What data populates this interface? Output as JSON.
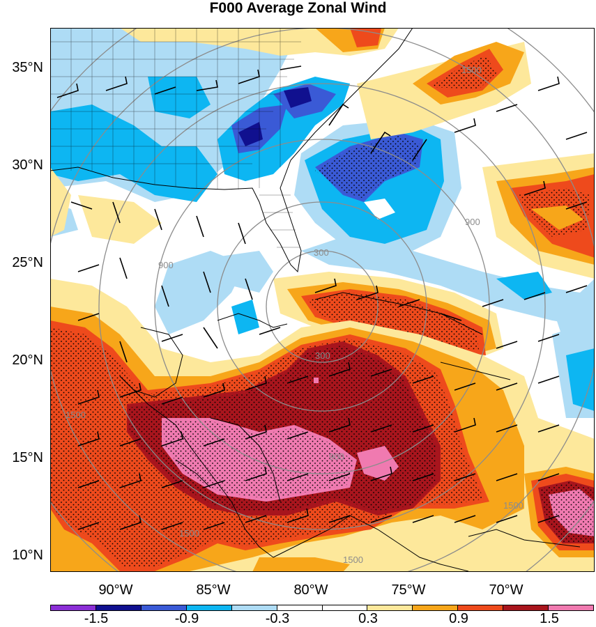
{
  "title": "F000 Average Zonal Wind",
  "latitude_labels": [
    "35°N",
    "30°N",
    "25°N",
    "20°N",
    "15°N",
    "10°N"
  ],
  "longitude_labels": [
    "90°W",
    "85°W",
    "80°W",
    "75°W",
    "70°W"
  ],
  "colorbar": {
    "colors": [
      "#8b2fd6",
      "#10108f",
      "#3a5ad6",
      "#0db6f2",
      "#aedcf5",
      "#ffffff",
      "#ffffff",
      "#fde89b",
      "#f7a61a",
      "#ee4a1c",
      "#a8151d",
      "#f07ab0"
    ],
    "tick_labels": [
      "-1.5",
      "-0.9",
      "-0.3",
      "0.3",
      "0.9",
      "1.5"
    ]
  },
  "range_ring_labels": [
    "300",
    "900",
    "1500",
    "900",
    "1500",
    "900",
    "300",
    "900",
    "1500",
    "1500",
    "1500",
    "900",
    "1500",
    "900"
  ],
  "palette": {
    "strong_neg": "#10108f",
    "neg2": "#3a5ad6",
    "neg1": "#0db6f2",
    "neg0": "#aedcf5",
    "pos0": "#fde89b",
    "pos1": "#f7a61a",
    "pos2": "#ee4a1c",
    "pos3": "#a8151d",
    "pos4": "#f07ab0"
  }
}
